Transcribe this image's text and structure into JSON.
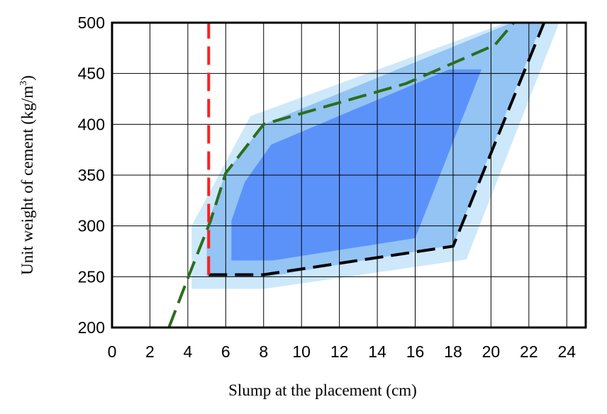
{
  "chart_data": {
    "type": "area",
    "xlabel": "Slump at the placement (cm)",
    "ylabel": {
      "main": "Unit weight of cement (kg/m",
      "sup": "3",
      "end": ")"
    },
    "xlim": [
      0,
      25
    ],
    "ylim": [
      200,
      500
    ],
    "x_ticks": [
      0,
      2,
      4,
      6,
      8,
      10,
      12,
      14,
      16,
      18,
      20,
      22,
      24
    ],
    "y_ticks": [
      200,
      250,
      300,
      350,
      400,
      450,
      500
    ],
    "grid_x": [
      0,
      2,
      4,
      6,
      8,
      10,
      12,
      14,
      16,
      18,
      20,
      22,
      24
    ],
    "grid_y": [
      200,
      250,
      300,
      350,
      400,
      450,
      500
    ],
    "regions": [
      {
        "color": "#cde8fb",
        "points": [
          [
            4.2,
            238
          ],
          [
            8,
            238
          ],
          [
            18.7,
            267
          ],
          [
            23.6,
            500
          ],
          [
            20.8,
            500
          ],
          [
            7.3,
            408
          ],
          [
            4.2,
            300
          ]
        ]
      },
      {
        "color": "#93c4f3",
        "points": [
          [
            5.0,
            250
          ],
          [
            8.2,
            250
          ],
          [
            18,
            281
          ],
          [
            22.7,
            500
          ],
          [
            21.1,
            500
          ],
          [
            8,
            400
          ],
          [
            6,
            352
          ],
          [
            5.0,
            300
          ]
        ]
      },
      {
        "color": "#5b92fa",
        "points": [
          [
            6.3,
            266
          ],
          [
            8.5,
            266
          ],
          [
            16,
            288
          ],
          [
            19.5,
            454
          ],
          [
            17.8,
            454
          ],
          [
            8.4,
            380
          ],
          [
            7,
            343
          ],
          [
            6.3,
            305
          ]
        ]
      }
    ],
    "lines": [
      {
        "color": "#2b6e1c",
        "dash": "dashed",
        "points": [
          [
            3.0,
            200
          ],
          [
            4.2,
            258
          ],
          [
            5.2,
            305
          ],
          [
            6,
            352
          ],
          [
            8,
            400
          ],
          [
            15.5,
            440
          ],
          [
            20.2,
            478
          ],
          [
            21.2,
            500
          ]
        ]
      },
      {
        "color": "#000000",
        "dash": "dashed",
        "points": [
          [
            5.1,
            252
          ],
          [
            8,
            252
          ],
          [
            18,
            280
          ],
          [
            22.8,
            500
          ]
        ]
      },
      {
        "color": "#ff1f1f",
        "dash": "dashed",
        "points": [
          [
            5.1,
            252
          ],
          [
            5.1,
            500
          ]
        ]
      }
    ]
  }
}
